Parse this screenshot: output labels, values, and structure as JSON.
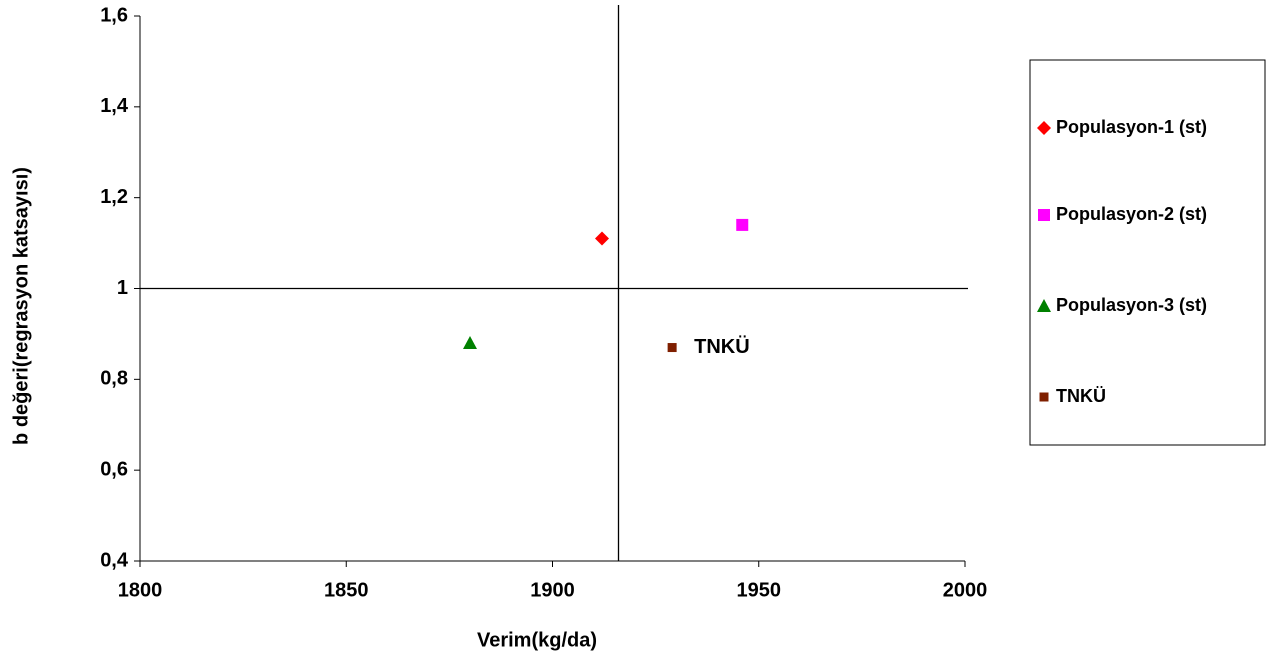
{
  "chart_data": {
    "type": "scatter",
    "x_label": "Verim(kg/da)",
    "y_label": "b değeri(regrasyon katsayısı)",
    "xlim": [
      1800,
      2000
    ],
    "xticks": [
      1800,
      1850,
      1900,
      1950,
      2000
    ],
    "ylim": [
      0.4,
      1.6
    ],
    "yticks": [
      {
        "value": 0.4,
        "label": "0,4"
      },
      {
        "value": 0.6,
        "label": "0,6"
      },
      {
        "value": 0.8,
        "label": "0,8"
      },
      1,
      {
        "value": 1.2,
        "label": "1,2"
      },
      {
        "value": 1.4,
        "label": "1,4"
      },
      {
        "value": 1.6,
        "label": "1,6"
      }
    ],
    "reference_lines": {
      "x": 1916,
      "y": 1
    },
    "legend": "right",
    "series": [
      {
        "name": "Populasyon-1 (st)",
        "color": "#ff0000",
        "marker": "diamond",
        "x": [
          1912
        ],
        "values": [
          1.11
        ]
      },
      {
        "name": "Populasyon-2 (st)",
        "color": "#ff00ff",
        "marker": "square",
        "x": [
          1946
        ],
        "values": [
          1.14
        ]
      },
      {
        "name": "Populasyon-3 (st)",
        "color": "#008000",
        "marker": "triangle",
        "x": [
          1880
        ],
        "values": [
          0.88
        ]
      },
      {
        "name": "TNKÜ",
        "color": "#7f1f00",
        "marker": "square-small",
        "x": [
          1929
        ],
        "values": [
          0.87
        ],
        "point_label": true
      }
    ]
  }
}
